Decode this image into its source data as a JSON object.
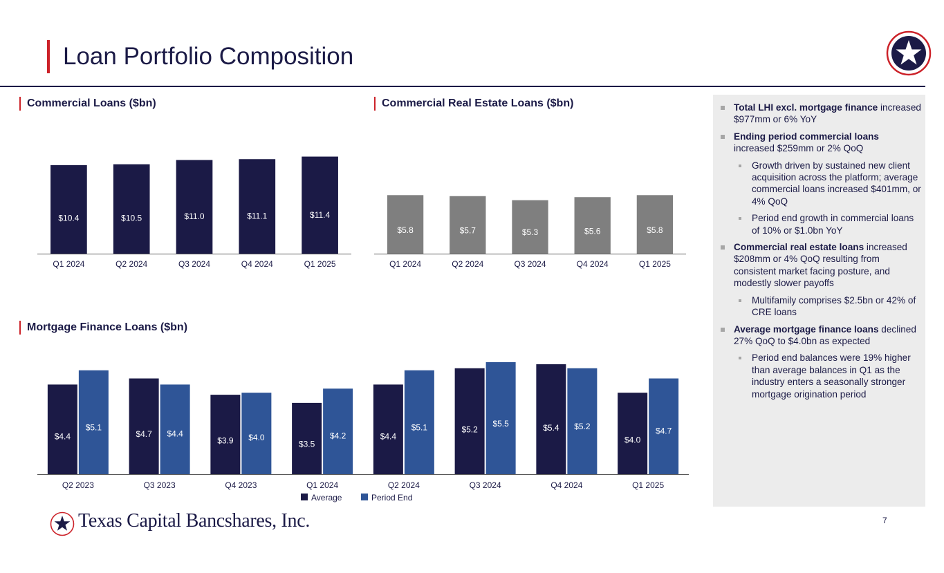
{
  "header": {
    "title": "Loan Portfolio Composition"
  },
  "colors": {
    "navy": "#1b1a46",
    "gray": "#7f7f7f",
    "blue": "#2f5597",
    "red": "#cc2229"
  },
  "chart_data": [
    {
      "type": "bar",
      "title": "Commercial Loans ($bn)",
      "categories": [
        "Q1 2024",
        "Q2 2024",
        "Q3 2024",
        "Q4 2024",
        "Q1 2025"
      ],
      "values": [
        10.4,
        10.5,
        11.0,
        11.1,
        11.4
      ],
      "labels": [
        "$10.4",
        "$10.5",
        "$11.0",
        "$11.1",
        "$11.4"
      ],
      "ylim": [
        0,
        12.5
      ]
    },
    {
      "type": "bar",
      "title": "Commercial Real Estate Loans ($bn)",
      "categories": [
        "Q1 2024",
        "Q2 2024",
        "Q3 2024",
        "Q4 2024",
        "Q1 2025"
      ],
      "values": [
        5.8,
        5.7,
        5.3,
        5.6,
        5.8
      ],
      "labels": [
        "$5.8",
        "$5.7",
        "$5.3",
        "$5.6",
        "$5.8"
      ],
      "ylim": [
        0,
        6.3
      ]
    },
    {
      "type": "bar",
      "title": "Mortgage Finance Loans ($bn)",
      "categories": [
        "Q2 2023",
        "Q3 2023",
        "Q4 2023",
        "Q1 2024",
        "Q2 2024",
        "Q3 2024",
        "Q4 2024",
        "Q1 2025"
      ],
      "legend": "bottom",
      "series": [
        {
          "name": "Average",
          "values": [
            4.4,
            4.7,
            3.9,
            3.5,
            4.4,
            5.2,
            5.4,
            4.0
          ],
          "labels": [
            "$4.4",
            "$4.7",
            "$3.9",
            "$3.5",
            "$4.4",
            "$5.2",
            "$5.4",
            "$4.0"
          ]
        },
        {
          "name": "Period End",
          "values": [
            5.1,
            4.4,
            4.0,
            4.2,
            5.1,
            5.5,
            5.2,
            4.7
          ],
          "labels": [
            "$5.1",
            "$4.4",
            "$4.0",
            "$4.2",
            "$5.1",
            "$5.5",
            "$5.2",
            "$4.7"
          ]
        }
      ],
      "ylim": [
        0,
        5.6
      ]
    }
  ],
  "commentary": {
    "b1": {
      "bold": "Total LHI excl. mortgage finance",
      "rest": " increased $977mm or 6% YoY"
    },
    "b2": {
      "bold": "Ending period commercial loans",
      "rest": " increased $259mm or 2% QoQ"
    },
    "b2a": "Growth driven by sustained new client acquisition across the platform; average commercial loans increased $401mm, or 4% QoQ",
    "b2b": "Period end growth in commercial loans of 10% or $1.0bn YoY",
    "b3": {
      "bold": "Commercial real estate loans",
      "rest": " increased $208mm or 4% QoQ resulting from consistent market facing posture, and modestly slower payoffs"
    },
    "b3a": "Multifamily comprises $2.5bn or 42% of CRE loans",
    "b4": {
      "bold": "Average mortgage finance loans",
      "rest": " declined 27% QoQ to $4.0bn as expected"
    },
    "b4a": "Period end balances were 19% higher than average balances in Q1 as the industry enters a seasonally stronger mortgage origination period"
  },
  "footer": {
    "brand": "Texas Capital Bancshares, Inc.",
    "page_number": "7"
  },
  "icons": {
    "corner": "star-seal-icon",
    "footer": "star-seal-icon"
  }
}
